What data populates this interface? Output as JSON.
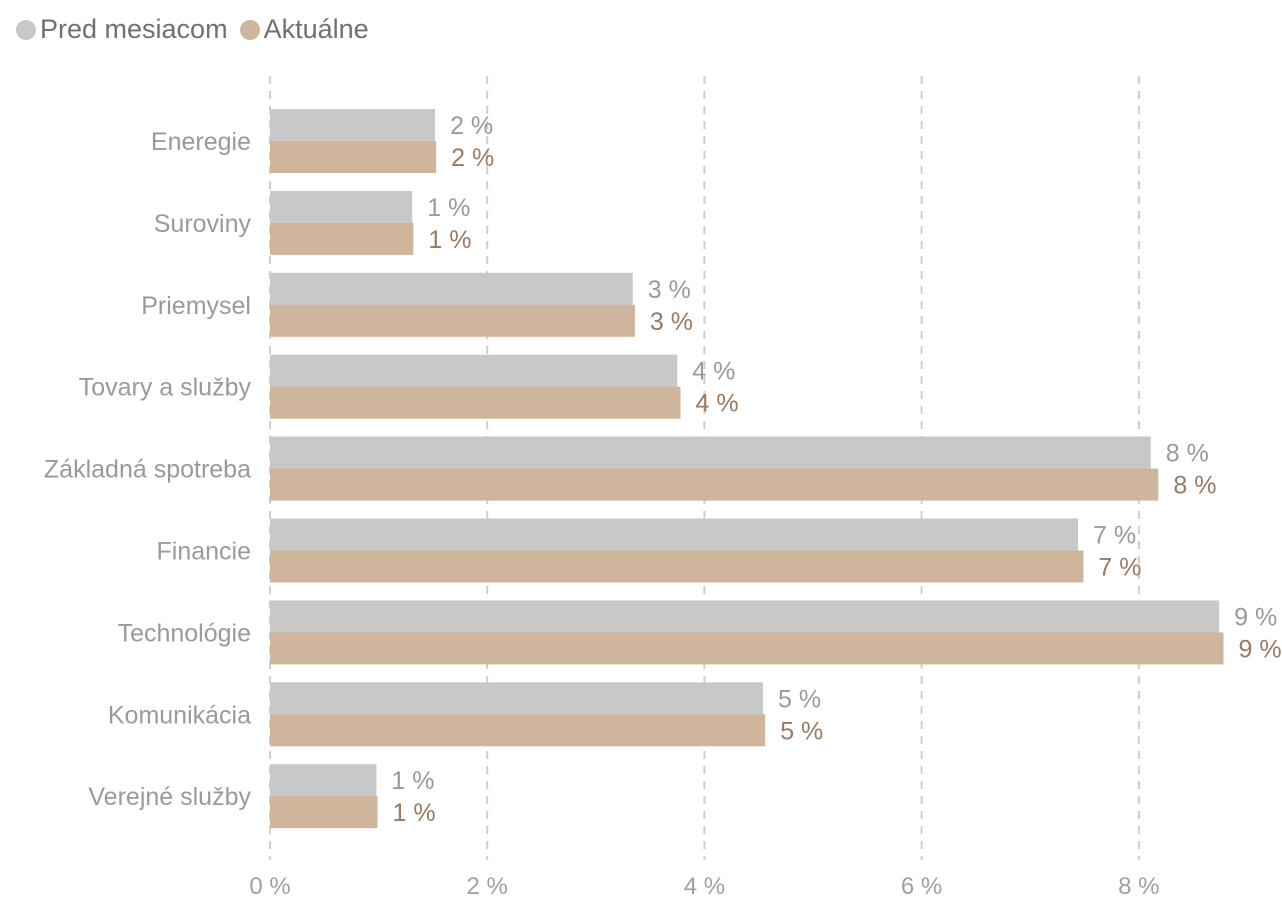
{
  "legend": {
    "items": [
      {
        "label": "Pred mesiacom",
        "color": "#c8c8c8"
      },
      {
        "label": "Aktuálne",
        "color": "#cfb59c"
      }
    ]
  },
  "chart_data": {
    "type": "bar",
    "orientation": "horizontal",
    "categories": [
      "Eneregie",
      "Suroviny",
      "Priemysel",
      "Tovary a služby",
      "Základná spotreba",
      "Financie",
      "Technológie",
      "Komunikácia",
      "Verejné služby"
    ],
    "series": [
      {
        "name": "Pred mesiacom",
        "color": "#c8c8c8",
        "label_color": "#9a9a9a",
        "values": [
          1.52,
          1.31,
          3.34,
          3.75,
          8.11,
          7.44,
          8.74,
          4.54,
          0.98
        ],
        "labels": [
          "2 %",
          "1 %",
          "3 %",
          "4 %",
          "8 %",
          "7 %",
          "9 %",
          "5 %",
          "1 %"
        ]
      },
      {
        "name": "Aktuálne",
        "color": "#cfb59c",
        "label_color": "#9a7a60",
        "values": [
          1.53,
          1.32,
          3.36,
          3.78,
          8.18,
          7.49,
          8.78,
          4.56,
          0.99
        ],
        "labels": [
          "2 %",
          "1 %",
          "3 %",
          "4 %",
          "8 %",
          "7 %",
          "9 %",
          "5 %",
          "1 %"
        ]
      }
    ],
    "x_ticks": [
      "0 %",
      "2 %",
      "4 %",
      "6 %",
      "8 %"
    ],
    "x_tick_values": [
      0,
      2,
      4,
      6,
      8
    ],
    "xlim": [
      0,
      8.78
    ],
    "grid": true,
    "grid_style": "dashed vertical",
    "legend_position": "top-left"
  }
}
